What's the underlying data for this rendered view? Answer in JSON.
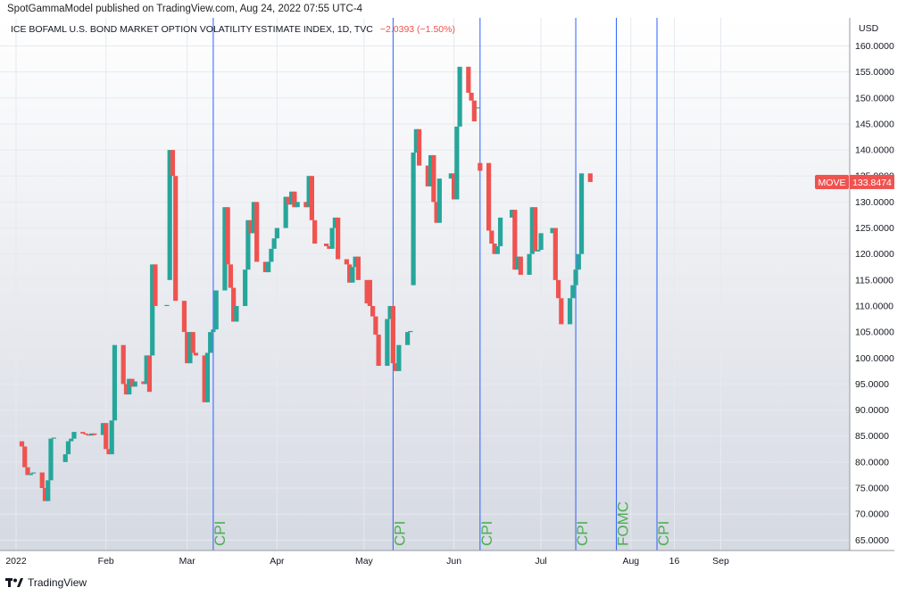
{
  "header": {
    "published": "SpotGammaModel published on TradingView.com, Aug 24, 2022 07:55 UTC-4"
  },
  "footer": {
    "label": "TradingView"
  },
  "colors": {
    "up": "#26a69a",
    "down": "#ef5350",
    "event_line": "#2962ff",
    "event_text": "#4caf50",
    "grid": "#e6e9ef",
    "bg_top": "#ffffff",
    "bg_bottom": "#d5d9e2"
  },
  "chart_data": {
    "type": "candlestick",
    "title": "ICE BOFAML U.S. BOND MARKET OPTION VOLATILITY ESTIMATE INDEX, 1D, TVC",
    "change": "−2.0393 (−1.50%)",
    "currency": "USD",
    "ylim": [
      63,
      163
    ],
    "y_ticks": [
      "160.0000",
      "155.0000",
      "150.0000",
      "145.0000",
      "140.0000",
      "135.0000",
      "130.0000",
      "125.0000",
      "120.0000",
      "115.0000",
      "110.0000",
      "105.0000",
      "100.0000",
      "95.0000",
      "90.0000",
      "85.0000",
      "80.0000",
      "75.0000",
      "70.0000",
      "65.0000"
    ],
    "x_ticks": [
      {
        "label": "2022",
        "date": "2022-01-01"
      },
      {
        "label": "Feb",
        "date": "2022-02-01"
      },
      {
        "label": "Mar",
        "date": "2022-03-01"
      },
      {
        "label": "Apr",
        "date": "2022-04-01"
      },
      {
        "label": "May",
        "date": "2022-05-01"
      },
      {
        "label": "Jun",
        "date": "2022-06-01"
      },
      {
        "label": "Jul",
        "date": "2022-07-01"
      },
      {
        "label": "Aug",
        "date": "2022-08-01"
      },
      {
        "label": "16",
        "date": "2022-08-16"
      },
      {
        "label": "Sep",
        "date": "2022-09-01"
      }
    ],
    "price_tag": {
      "name": "MOVE",
      "value": "133.8474"
    },
    "events": [
      {
        "label": "CPI",
        "date": "2022-03-10"
      },
      {
        "label": "CPI",
        "date": "2022-05-11"
      },
      {
        "label": "CPI",
        "date": "2022-06-10"
      },
      {
        "label": "CPI",
        "date": "2022-07-13"
      },
      {
        "label": "FOMC",
        "date": "2022-07-27"
      },
      {
        "label": "CPI",
        "date": "2022-08-10"
      }
    ],
    "candles": [
      {
        "date": "2022-01-03",
        "o": 84.0,
        "c": 83.0
      },
      {
        "date": "2022-01-04",
        "o": 83.0,
        "c": 79.0
      },
      {
        "date": "2022-01-05",
        "o": 79.0,
        "c": 77.5
      },
      {
        "date": "2022-01-06",
        "o": 77.5,
        "c": 77.8
      },
      {
        "date": "2022-01-07",
        "o": 77.8,
        "c": 78.0
      },
      {
        "date": "2022-01-10",
        "o": 78.0,
        "c": 75.0
      },
      {
        "date": "2022-01-11",
        "o": 75.0,
        "c": 72.5
      },
      {
        "date": "2022-01-12",
        "o": 72.5,
        "c": 76.5
      },
      {
        "date": "2022-01-13",
        "o": 76.5,
        "c": 84.5
      },
      {
        "date": "2022-01-14",
        "o": 84.5,
        "c": 84.7
      },
      {
        "date": "2022-01-18",
        "o": 80.0,
        "c": 81.5
      },
      {
        "date": "2022-01-19",
        "o": 81.5,
        "c": 84.0
      },
      {
        "date": "2022-01-20",
        "o": 84.0,
        "c": 84.5
      },
      {
        "date": "2022-01-21",
        "o": 84.5,
        "c": 85.8
      },
      {
        "date": "2022-01-24",
        "o": 85.8,
        "c": 85.5
      },
      {
        "date": "2022-01-25",
        "o": 85.5,
        "c": 85.3
      },
      {
        "date": "2022-01-26",
        "o": 85.3,
        "c": 85.1
      },
      {
        "date": "2022-01-27",
        "o": 85.1,
        "c": 85.5
      },
      {
        "date": "2022-01-28",
        "o": 85.5,
        "c": 85.2
      },
      {
        "date": "2022-01-31",
        "o": 85.2,
        "c": 87.5
      },
      {
        "date": "2022-02-01",
        "o": 87.5,
        "c": 82.5
      },
      {
        "date": "2022-02-02",
        "o": 82.5,
        "c": 81.5
      },
      {
        "date": "2022-02-03",
        "o": 81.5,
        "c": 88.0
      },
      {
        "date": "2022-02-04",
        "o": 88.0,
        "c": 102.5
      },
      {
        "date": "2022-02-07",
        "o": 102.5,
        "c": 95.0
      },
      {
        "date": "2022-02-08",
        "o": 95.0,
        "c": 93.0
      },
      {
        "date": "2022-02-09",
        "o": 93.0,
        "c": 96.0
      },
      {
        "date": "2022-02-10",
        "o": 96.0,
        "c": 94.5
      },
      {
        "date": "2022-02-11",
        "o": 94.5,
        "c": 95.5
      },
      {
        "date": "2022-02-14",
        "o": 95.5,
        "c": 95.0
      },
      {
        "date": "2022-02-15",
        "o": 95.0,
        "c": 100.5
      },
      {
        "date": "2022-02-16",
        "o": 100.5,
        "c": 93.5
      },
      {
        "date": "2022-02-17",
        "o": 100.5,
        "c": 118.0
      },
      {
        "date": "2022-02-18",
        "o": 118.0,
        "c": 110.0
      },
      {
        "date": "2022-02-22",
        "o": 110.0,
        "c": 110.2
      },
      {
        "date": "2022-02-23",
        "o": 115.0,
        "c": 140.0
      },
      {
        "date": "2022-02-24",
        "o": 140.0,
        "c": 135.0
      },
      {
        "date": "2022-02-25",
        "o": 135.0,
        "c": 111.0
      },
      {
        "date": "2022-02-28",
        "o": 111.0,
        "c": 105.0
      },
      {
        "date": "2022-03-01",
        "o": 105.0,
        "c": 99.0
      },
      {
        "date": "2022-03-02",
        "o": 99.0,
        "c": 105.0
      },
      {
        "date": "2022-03-03",
        "o": 105.0,
        "c": 101.0
      },
      {
        "date": "2022-03-04",
        "o": 101.0,
        "c": 100.5
      },
      {
        "date": "2022-03-07",
        "o": 100.5,
        "c": 91.5
      },
      {
        "date": "2022-03-08",
        "o": 91.5,
        "c": 101.0
      },
      {
        "date": "2022-03-09",
        "o": 101.0,
        "c": 105.0
      },
      {
        "date": "2022-03-10",
        "o": 105.0,
        "c": 105.5
      },
      {
        "date": "2022-03-11",
        "o": 105.5,
        "c": 113.0
      },
      {
        "date": "2022-03-14",
        "o": 113.0,
        "c": 129.0
      },
      {
        "date": "2022-03-15",
        "o": 129.0,
        "c": 118.0
      },
      {
        "date": "2022-03-16",
        "o": 118.0,
        "c": 113.5
      },
      {
        "date": "2022-03-17",
        "o": 113.5,
        "c": 107.0
      },
      {
        "date": "2022-03-18",
        "o": 107.0,
        "c": 110.0
      },
      {
        "date": "2022-03-21",
        "o": 110.0,
        "c": 117.0
      },
      {
        "date": "2022-03-22",
        "o": 117.0,
        "c": 126.5
      },
      {
        "date": "2022-03-23",
        "o": 126.5,
        "c": 124.0
      },
      {
        "date": "2022-03-24",
        "o": 124.0,
        "c": 130.0
      },
      {
        "date": "2022-03-25",
        "o": 130.0,
        "c": 118.5
      },
      {
        "date": "2022-03-28",
        "o": 118.5,
        "c": 116.5
      },
      {
        "date": "2022-03-29",
        "o": 116.5,
        "c": 118.5
      },
      {
        "date": "2022-03-30",
        "o": 118.5,
        "c": 121.0
      },
      {
        "date": "2022-03-31",
        "o": 121.0,
        "c": 123.0
      },
      {
        "date": "2022-04-01",
        "o": 123.0,
        "c": 125.0
      },
      {
        "date": "2022-04-04",
        "o": 125.0,
        "c": 131.0
      },
      {
        "date": "2022-04-05",
        "o": 131.0,
        "c": 129.5
      },
      {
        "date": "2022-04-06",
        "o": 129.5,
        "c": 132.0
      },
      {
        "date": "2022-04-07",
        "o": 132.0,
        "c": 129.0
      },
      {
        "date": "2022-04-08",
        "o": 129.0,
        "c": 130.0
      },
      {
        "date": "2022-04-11",
        "o": 130.0,
        "c": 129.0
      },
      {
        "date": "2022-04-12",
        "o": 129.0,
        "c": 135.0
      },
      {
        "date": "2022-04-13",
        "o": 135.0,
        "c": 126.5
      },
      {
        "date": "2022-04-14",
        "o": 126.5,
        "c": 122.0
      },
      {
        "date": "2022-04-18",
        "o": 122.0,
        "c": 121.5
      },
      {
        "date": "2022-04-19",
        "o": 121.5,
        "c": 121.0
      },
      {
        "date": "2022-04-20",
        "o": 121.0,
        "c": 125.0
      },
      {
        "date": "2022-04-21",
        "o": 125.0,
        "c": 127.0
      },
      {
        "date": "2022-04-22",
        "o": 127.0,
        "c": 119.0
      },
      {
        "date": "2022-04-25",
        "o": 119.0,
        "c": 118.0
      },
      {
        "date": "2022-04-26",
        "o": 118.0,
        "c": 114.5
      },
      {
        "date": "2022-04-27",
        "o": 114.5,
        "c": 117.5
      },
      {
        "date": "2022-04-28",
        "o": 117.5,
        "c": 119.5
      },
      {
        "date": "2022-04-29",
        "o": 119.5,
        "c": 115.0
      },
      {
        "date": "2022-05-02",
        "o": 115.0,
        "c": 110.5
      },
      {
        "date": "2022-05-03",
        "o": 115.0,
        "c": 110.0
      },
      {
        "date": "2022-05-04",
        "o": 110.0,
        "c": 108.0
      },
      {
        "date": "2022-05-05",
        "o": 108.0,
        "c": 104.5
      },
      {
        "date": "2022-05-06",
        "o": 104.5,
        "c": 98.5
      },
      {
        "date": "2022-05-09",
        "o": 98.5,
        "c": 107.5
      },
      {
        "date": "2022-05-10",
        "o": 107.5,
        "c": 110.0
      },
      {
        "date": "2022-05-11",
        "o": 110.0,
        "c": 99.0
      },
      {
        "date": "2022-05-12",
        "o": 99.0,
        "c": 97.5
      },
      {
        "date": "2022-05-13",
        "o": 97.5,
        "c": 102.5
      },
      {
        "date": "2022-05-16",
        "o": 102.5,
        "c": 105.0
      },
      {
        "date": "2022-05-17",
        "o": 105.0,
        "c": 105.2
      },
      {
        "date": "2022-05-18",
        "o": 114.0,
        "c": 139.5
      },
      {
        "date": "2022-05-19",
        "o": 139.5,
        "c": 144.0
      },
      {
        "date": "2022-05-20",
        "o": 144.0,
        "c": 137.0
      },
      {
        "date": "2022-05-23",
        "o": 137.0,
        "c": 133.0
      },
      {
        "date": "2022-05-24",
        "o": 133.0,
        "c": 139.0
      },
      {
        "date": "2022-05-25",
        "o": 139.0,
        "c": 130.0
      },
      {
        "date": "2022-05-26",
        "o": 130.0,
        "c": 126.0
      },
      {
        "date": "2022-05-27",
        "o": 126.0,
        "c": 134.5
      },
      {
        "date": "2022-05-31",
        "o": 134.5,
        "c": 135.5
      },
      {
        "date": "2022-06-01",
        "o": 135.5,
        "c": 130.5
      },
      {
        "date": "2022-06-02",
        "o": 130.5,
        "c": 144.5
      },
      {
        "date": "2022-06-03",
        "o": 144.5,
        "c": 156.0
      },
      {
        "date": "2022-06-06",
        "o": 156.0,
        "c": 151.0
      },
      {
        "date": "2022-06-07",
        "o": 151.0,
        "c": 149.5
      },
      {
        "date": "2022-06-08",
        "o": 149.5,
        "c": 145.5
      },
      {
        "date": "2022-06-09",
        "o": 148.0,
        "c": 148.2
      },
      {
        "date": "2022-06-10",
        "o": 137.5,
        "c": 136.0
      },
      {
        "date": "2022-06-13",
        "o": 137.5,
        "c": 124.5
      },
      {
        "date": "2022-06-14",
        "o": 124.5,
        "c": 122.0
      },
      {
        "date": "2022-06-15",
        "o": 122.0,
        "c": 120.0
      },
      {
        "date": "2022-06-16",
        "o": 120.0,
        "c": 121.5
      },
      {
        "date": "2022-06-17",
        "o": 121.5,
        "c": 127.0
      },
      {
        "date": "2022-06-21",
        "o": 127.0,
        "c": 128.5
      },
      {
        "date": "2022-06-22",
        "o": 128.5,
        "c": 117.0
      },
      {
        "date": "2022-06-23",
        "o": 117.0,
        "c": 119.5
      },
      {
        "date": "2022-06-24",
        "o": 119.5,
        "c": 116.0
      },
      {
        "date": "2022-06-27",
        "o": 116.0,
        "c": 120.0
      },
      {
        "date": "2022-06-28",
        "o": 120.0,
        "c": 129.0
      },
      {
        "date": "2022-06-29",
        "o": 129.0,
        "c": 120.5
      },
      {
        "date": "2022-06-30",
        "o": 120.5,
        "c": 120.8
      },
      {
        "date": "2022-07-01",
        "o": 120.8,
        "c": 124.0
      },
      {
        "date": "2022-07-05",
        "o": 124.0,
        "c": 125.0
      },
      {
        "date": "2022-07-06",
        "o": 125.0,
        "c": 115.0
      },
      {
        "date": "2022-07-07",
        "o": 115.0,
        "c": 111.5
      },
      {
        "date": "2022-07-08",
        "o": 111.5,
        "c": 106.5
      },
      {
        "date": "2022-07-11",
        "o": 106.5,
        "c": 111.5
      },
      {
        "date": "2022-07-12",
        "o": 111.5,
        "c": 114.0
      },
      {
        "date": "2022-07-13",
        "o": 114.0,
        "c": 117.0
      },
      {
        "date": "2022-07-14",
        "o": 117.0,
        "c": 120.0
      },
      {
        "date": "2022-07-15",
        "o": 120.0,
        "c": 135.5
      },
      {
        "date": "2022-07-18",
        "o": 135.5,
        "c": 133.8474
      }
    ]
  }
}
